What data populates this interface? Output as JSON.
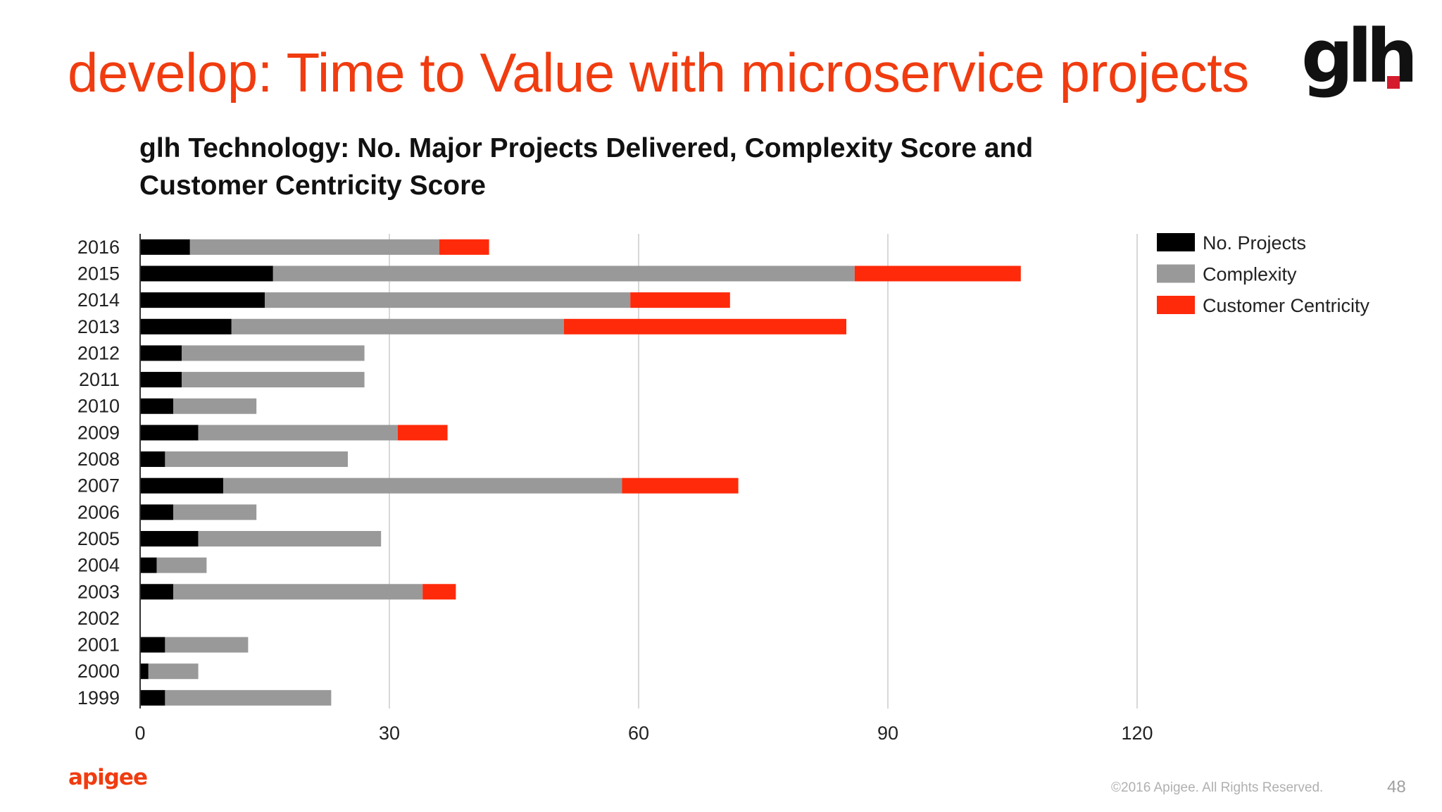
{
  "slide": {
    "title": "develop: Time to Value with microservice projects",
    "logo_text": "glh",
    "footer_logo": "apigee",
    "copyright": "©2016 Apigee. All Rights Reserved.",
    "page_number": "48"
  },
  "colors": {
    "title": "#f03c10",
    "no_projects": "#000000",
    "complexity": "#999999",
    "customer_centricity": "#ff2a0a",
    "gridline": "#cccccc"
  },
  "chart_data": {
    "type": "bar",
    "orientation": "horizontal",
    "stacked": true,
    "title": "glh Technology: No. Major Projects Delivered, Complexity Score and Customer Centricity Score",
    "categories": [
      "2016",
      "2015",
      "2014",
      "2013",
      "2012",
      "2011",
      "2010",
      "2009",
      "2008",
      "2007",
      "2006",
      "2005",
      "2004",
      "2003",
      "2002",
      "2001",
      "2000",
      "1999"
    ],
    "series": [
      {
        "name": "No. Projects",
        "color": "#000000",
        "values": [
          6,
          16,
          15,
          11,
          5,
          5,
          4,
          7,
          3,
          10,
          4,
          7,
          2,
          4,
          0,
          3,
          1,
          3
        ]
      },
      {
        "name": "Complexity",
        "color": "#999999",
        "values": [
          30,
          70,
          44,
          40,
          22,
          22,
          10,
          24,
          22,
          48,
          10,
          22,
          6,
          30,
          0,
          10,
          6,
          20
        ]
      },
      {
        "name": "Customer Centricity",
        "color": "#ff2a0a",
        "values": [
          6,
          20,
          12,
          34,
          0,
          0,
          0,
          6,
          0,
          14,
          0,
          0,
          0,
          4,
          0,
          0,
          0,
          0
        ]
      }
    ],
    "xlim": [
      0,
      120
    ],
    "xticks": [
      "0",
      "30",
      "60",
      "90",
      "120"
    ],
    "grid": true,
    "legend": "right"
  }
}
